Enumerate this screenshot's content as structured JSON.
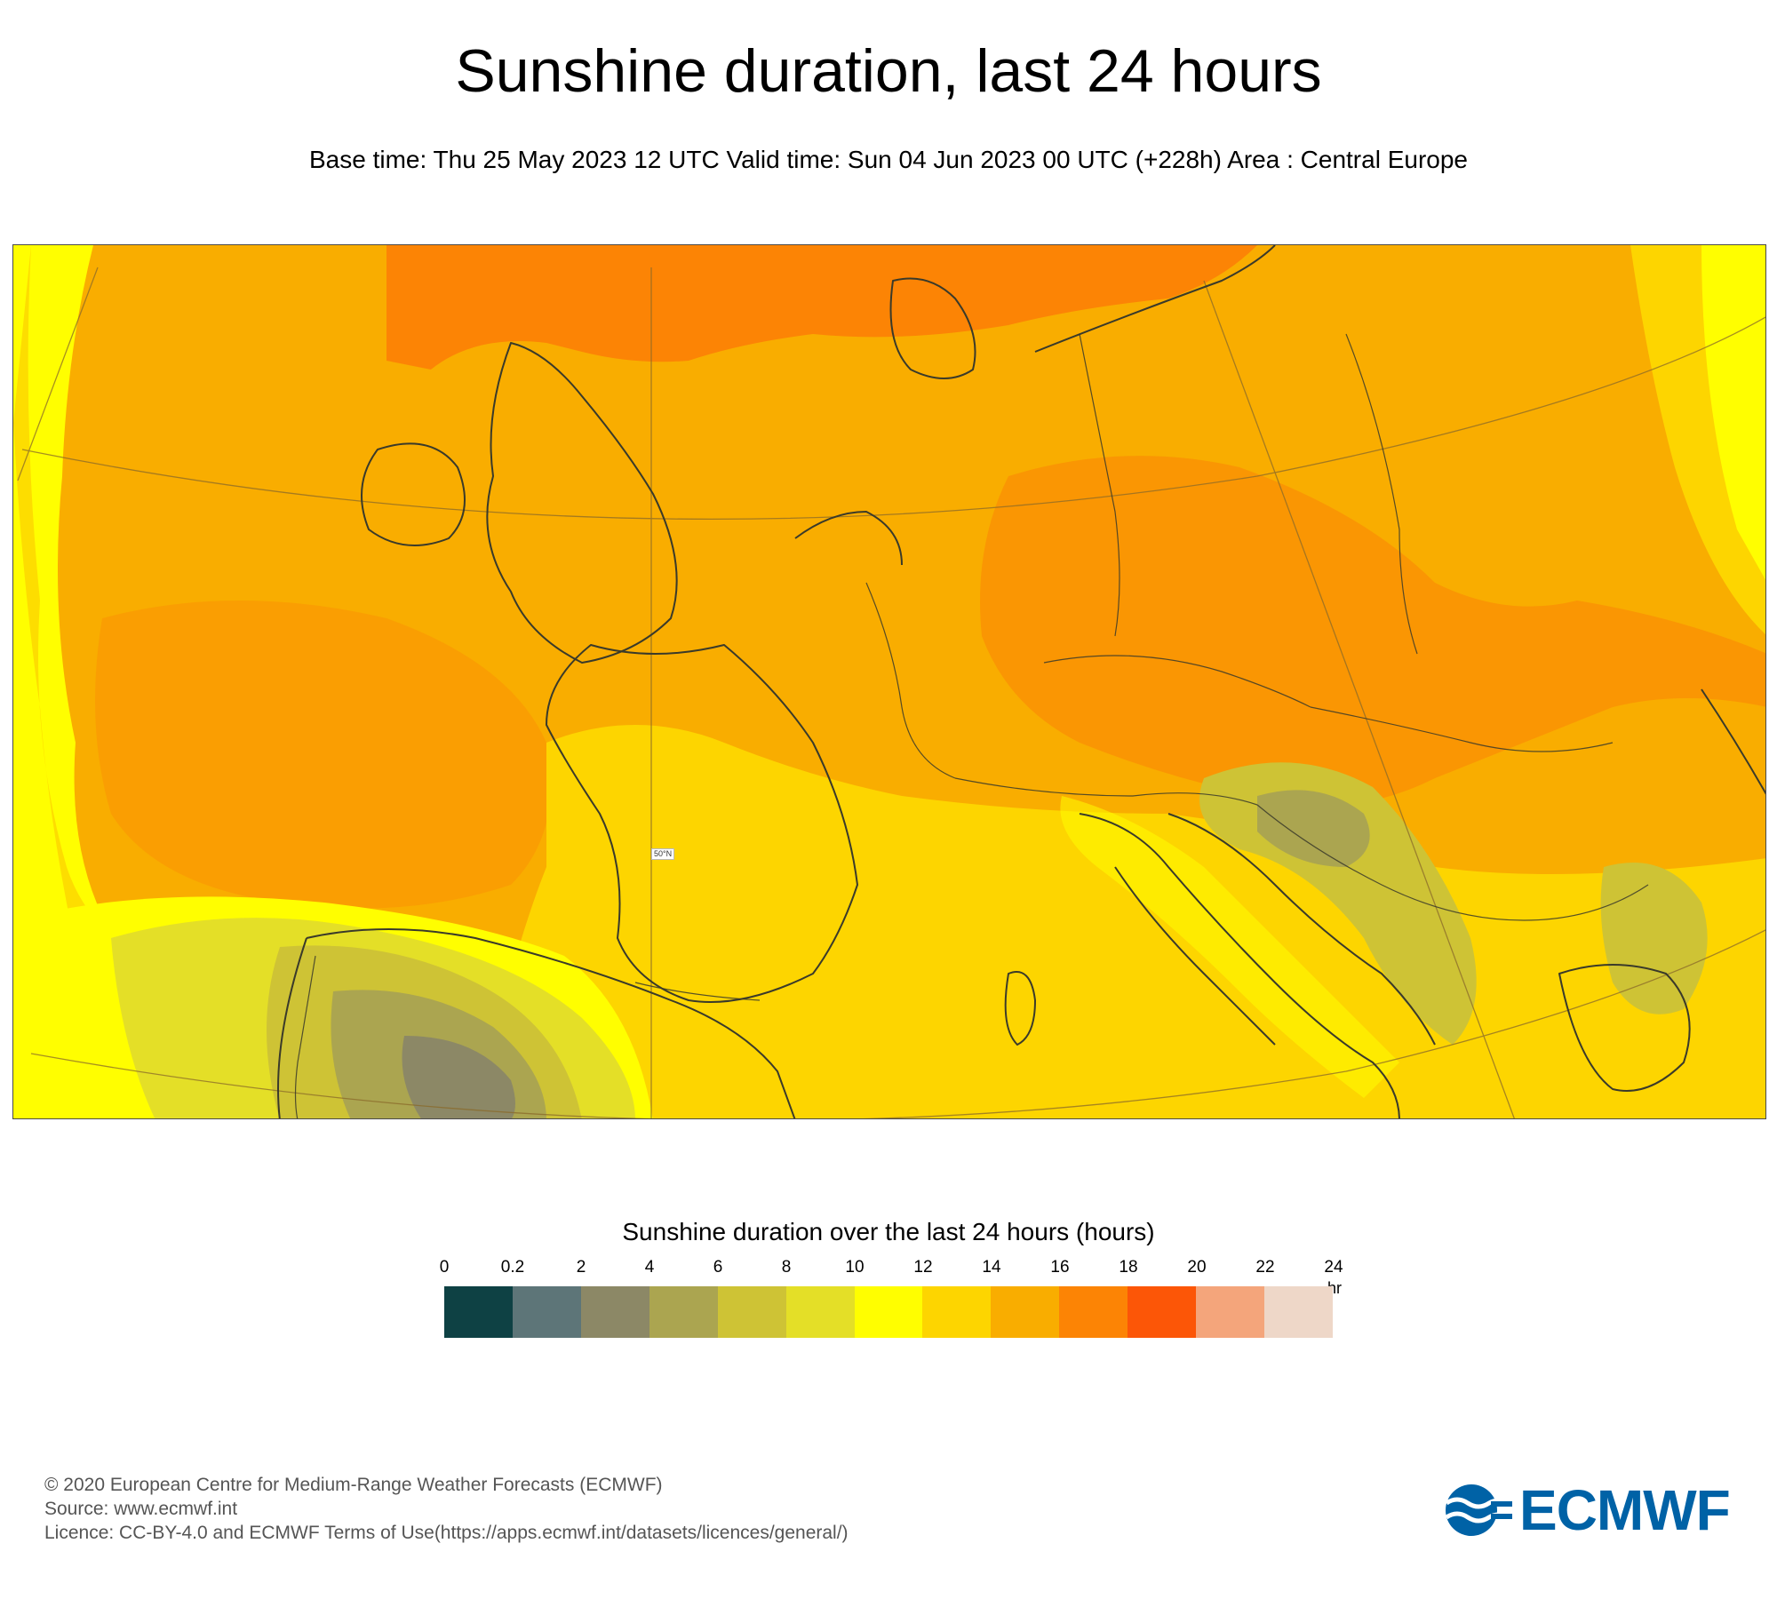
{
  "header": {
    "title": "Sunshine duration, last 24 hours",
    "subtitle": "Base time: Thu 25 May 2023 12 UTC Valid time: Sun 04 Jun 2023 00 UTC (+228h) Area : Central Europe"
  },
  "map": {
    "area": "Central Europe",
    "lat_label": "50°N",
    "colors": {
      "ocean_west": "#f9ad00",
      "land_main": "#f9ad00",
      "north_band": "#fc8405",
      "south_band": "#fdd500",
      "bright_edge": "#fffe00",
      "iberia_dim": "#cec335",
      "balkan_dim": "#aba550",
      "border_line": "#3a3a2a",
      "graticule": "#8a6a2a"
    }
  },
  "legend": {
    "title": "Sunshine duration over the last 24 hours (hours)",
    "unit": "-hr",
    "ticks": [
      "0",
      "0.2",
      "2",
      "4",
      "6",
      "8",
      "10",
      "12",
      "14",
      "16",
      "18",
      "20",
      "22",
      "24"
    ],
    "colors": [
      "#0e4144",
      "#5d7578",
      "#8c8866",
      "#aba550",
      "#cec335",
      "#e4df27",
      "#fffe00",
      "#fdd500",
      "#f9ad00",
      "#fc8405",
      "#fc5607",
      "#f4a57b",
      "#eed7c8"
    ]
  },
  "footer": {
    "copyright": "© 2020 European Centre for Medium-Range Weather Forecasts (ECMWF)",
    "source": "Source: www.ecmwf.int",
    "licence": "Licence: CC-BY-4.0 and ECMWF Terms of Use(https://apps.ecmwf.int/datasets/licences/general/)"
  },
  "logo": {
    "text": "ECMWF"
  }
}
